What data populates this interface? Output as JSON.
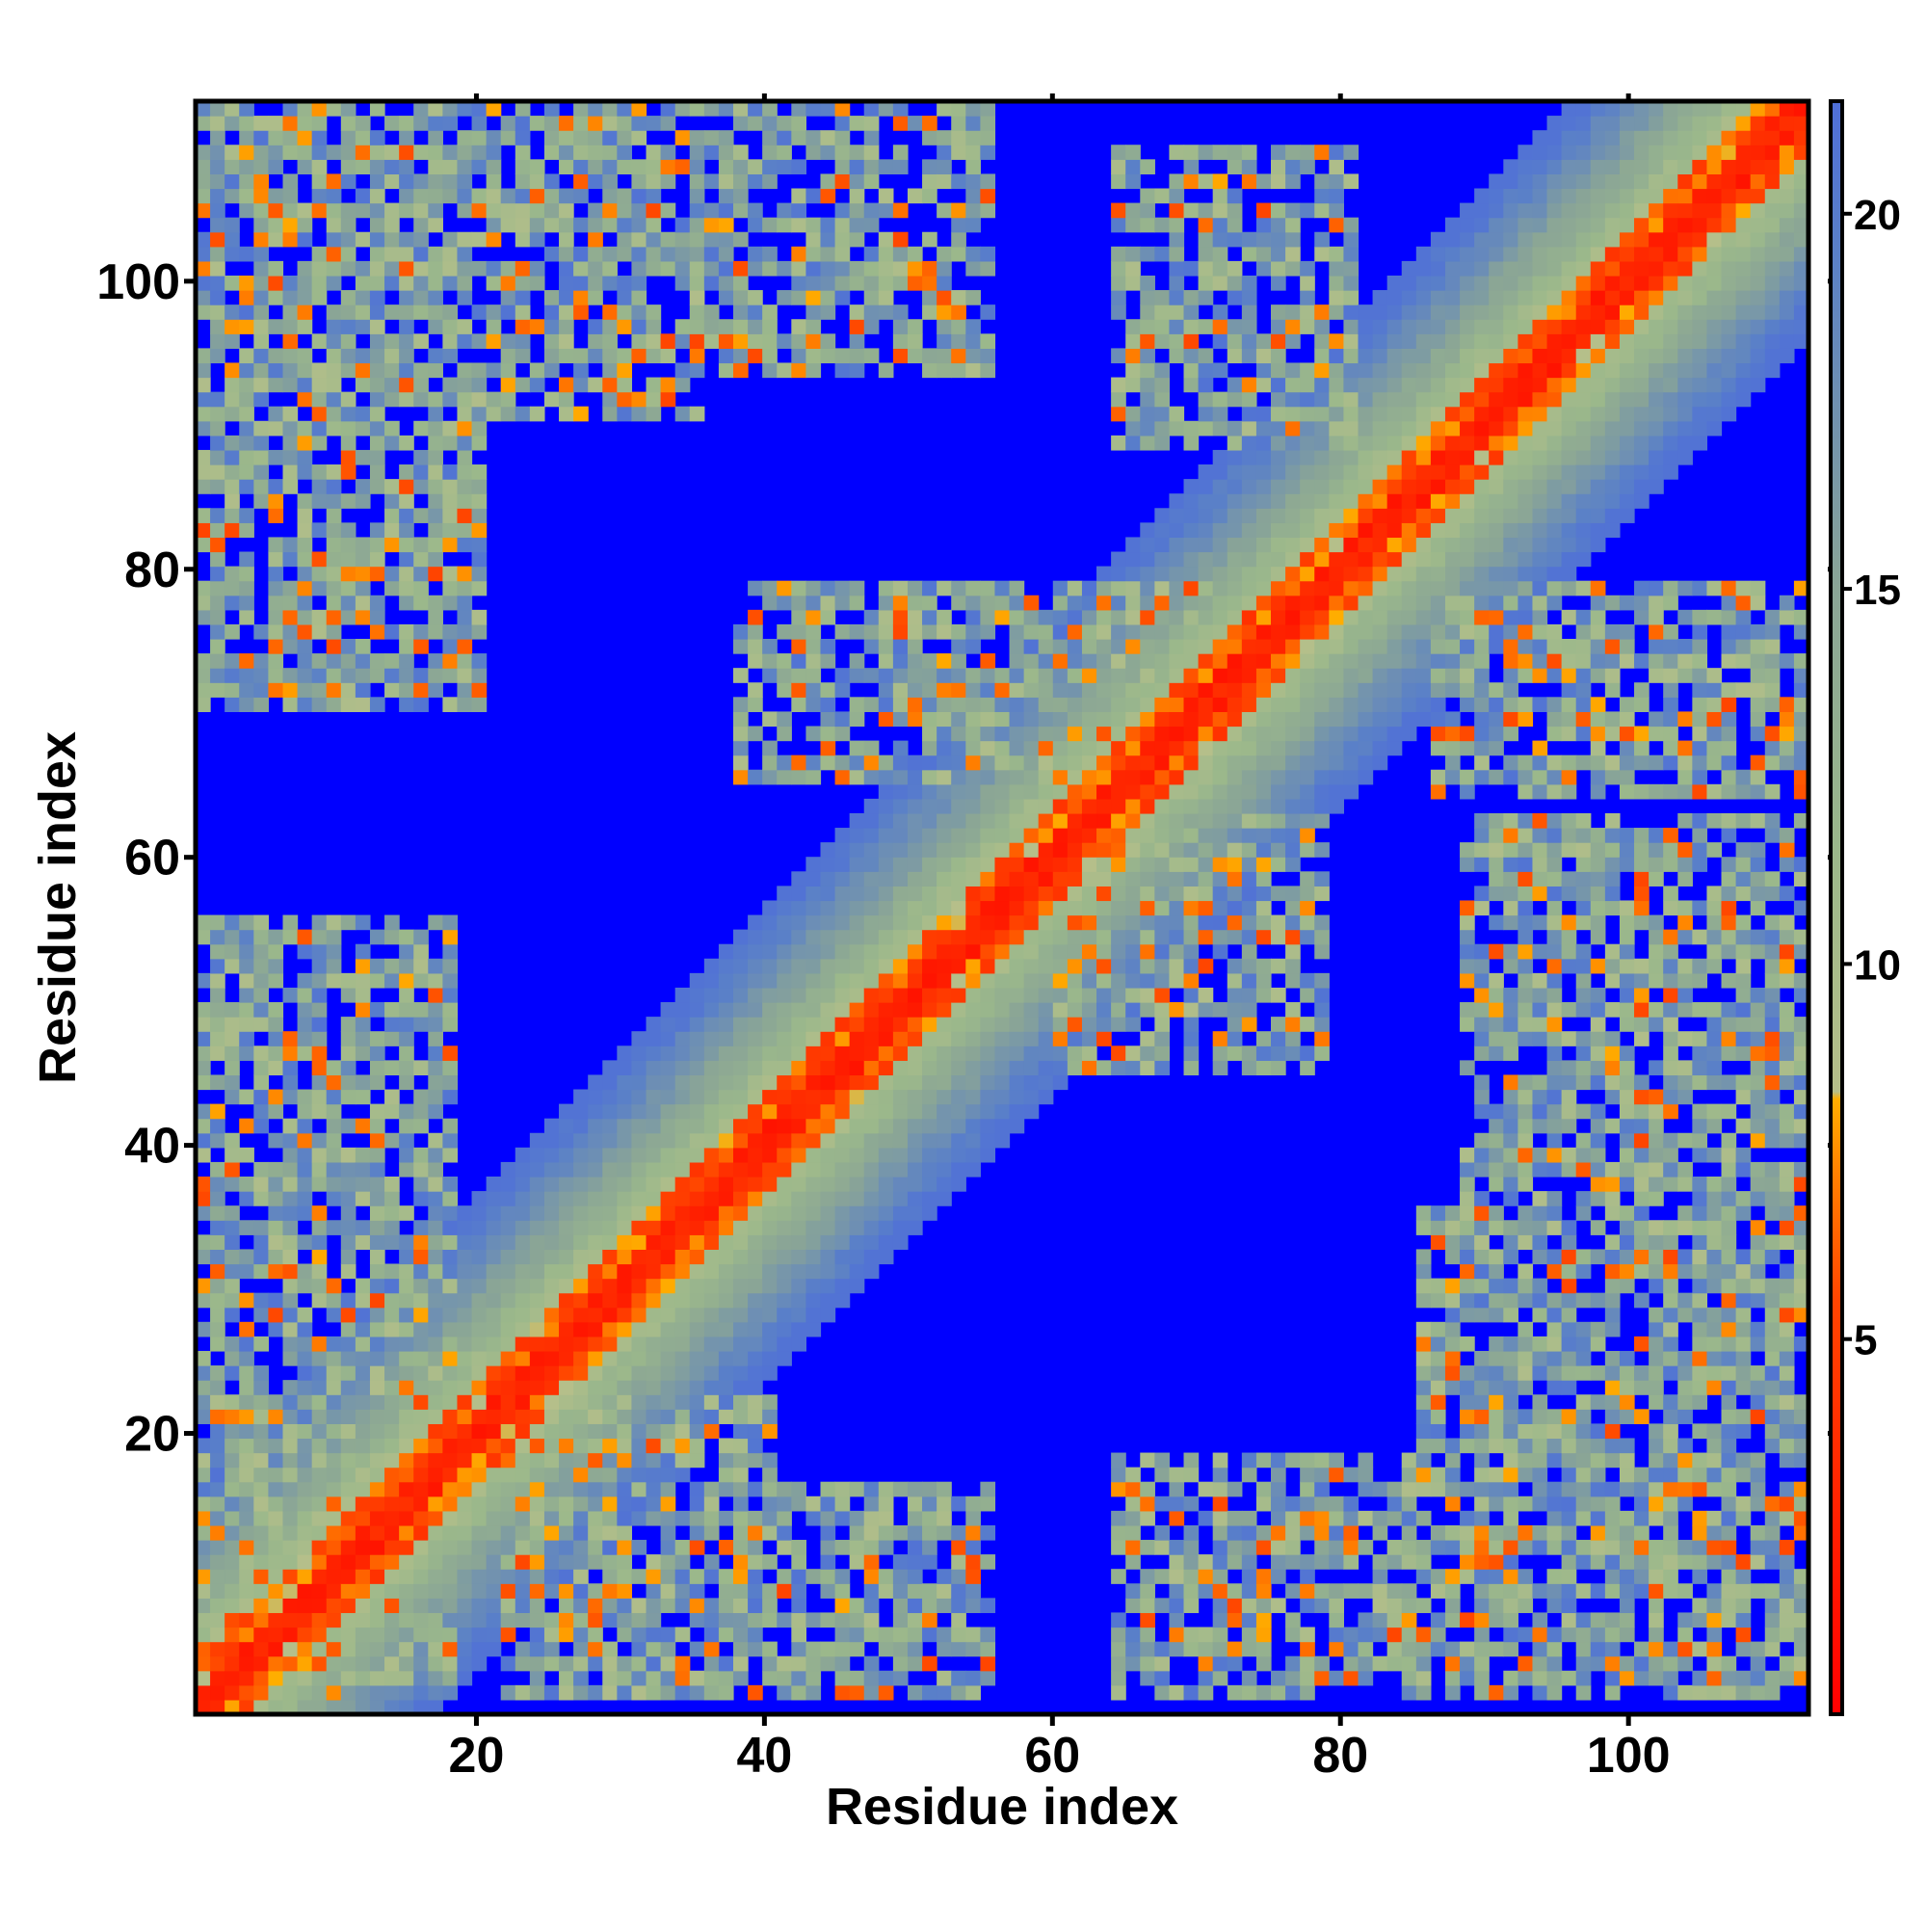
{
  "chart_data": {
    "type": "heatmap",
    "title": "",
    "xlabel": "Residue index",
    "ylabel": "Residue index",
    "xlim": [
      1,
      112
    ],
    "ylim": [
      1,
      112
    ],
    "x_ticks": [
      20,
      40,
      60,
      80,
      100
    ],
    "y_ticks": [
      20,
      40,
      60,
      80,
      100
    ],
    "colorbar": {
      "ticks": [
        5,
        10,
        15,
        20
      ],
      "range": [
        0,
        21.5
      ],
      "colors": [
        {
          "value": 0,
          "color": "#ff0000"
        },
        {
          "value": 5.5,
          "color": "#ff4400"
        },
        {
          "value": 7.2,
          "color": "#ff8000"
        },
        {
          "value": 8.2,
          "color": "#ffae00"
        },
        {
          "value": 8.3,
          "color": "#b6bf8a"
        },
        {
          "value": 11.5,
          "color": "#9bb88b"
        },
        {
          "value": 15,
          "color": "#8aa596"
        },
        {
          "value": 19.5,
          "color": "#5a80c8"
        },
        {
          "value": 21.5,
          "color": "#4f6fd8"
        }
      ],
      "far_color": "#0000ff"
    },
    "n_residues": 111,
    "diagonal_band": {
      "width": 16,
      "note_values": "distance increases with |i-j|"
    },
    "contact_regions": [
      {
        "x_range": [
          1,
          18
        ],
        "y_range": [
          2,
          55
        ],
        "mean_value": 12
      },
      {
        "x_range": [
          1,
          20
        ],
        "y_range": [
          70,
          111
        ],
        "mean_value": 12
      },
      {
        "x_range": [
          2,
          18
        ],
        "y_range": [
          87,
          111
        ],
        "mean_value": 12
      },
      {
        "x_range": [
          16,
          35
        ],
        "y_range": [
          90,
          111
        ],
        "mean_value": 11
      },
      {
        "x_range": [
          30,
          55
        ],
        "y_range": [
          93,
          111
        ],
        "mean_value": 11
      },
      {
        "x_range": [
          64,
          80
        ],
        "y_range": [
          88,
          108
        ],
        "mean_value": 10
      },
      {
        "x_range": [
          38,
          70
        ],
        "y_range": [
          65,
          78
        ],
        "mean_value": 12
      },
      {
        "x_range": [
          22,
          40
        ],
        "y_range": [
          2,
          22
        ],
        "mean_value": 11
      },
      {
        "x_range": [
          37,
          55
        ],
        "y_range": [
          2,
          16
        ],
        "mean_value": 12
      },
      {
        "x_range": [
          64,
          85
        ],
        "y_range": [
          2,
          18
        ],
        "mean_value": 12
      },
      {
        "x_range": [
          85,
          112
        ],
        "y_range": [
          2,
          35
        ],
        "mean_value": 12
      },
      {
        "x_range": [
          88,
          112
        ],
        "y_range": [
          35,
          62
        ],
        "mean_value": 11
      },
      {
        "x_range": [
          86,
          112
        ],
        "y_range": [
          64,
          78
        ],
        "mean_value": 11
      },
      {
        "x_range": [
          60,
          78
        ],
        "y_range": [
          45,
          62
        ],
        "mean_value": 12
      }
    ]
  }
}
